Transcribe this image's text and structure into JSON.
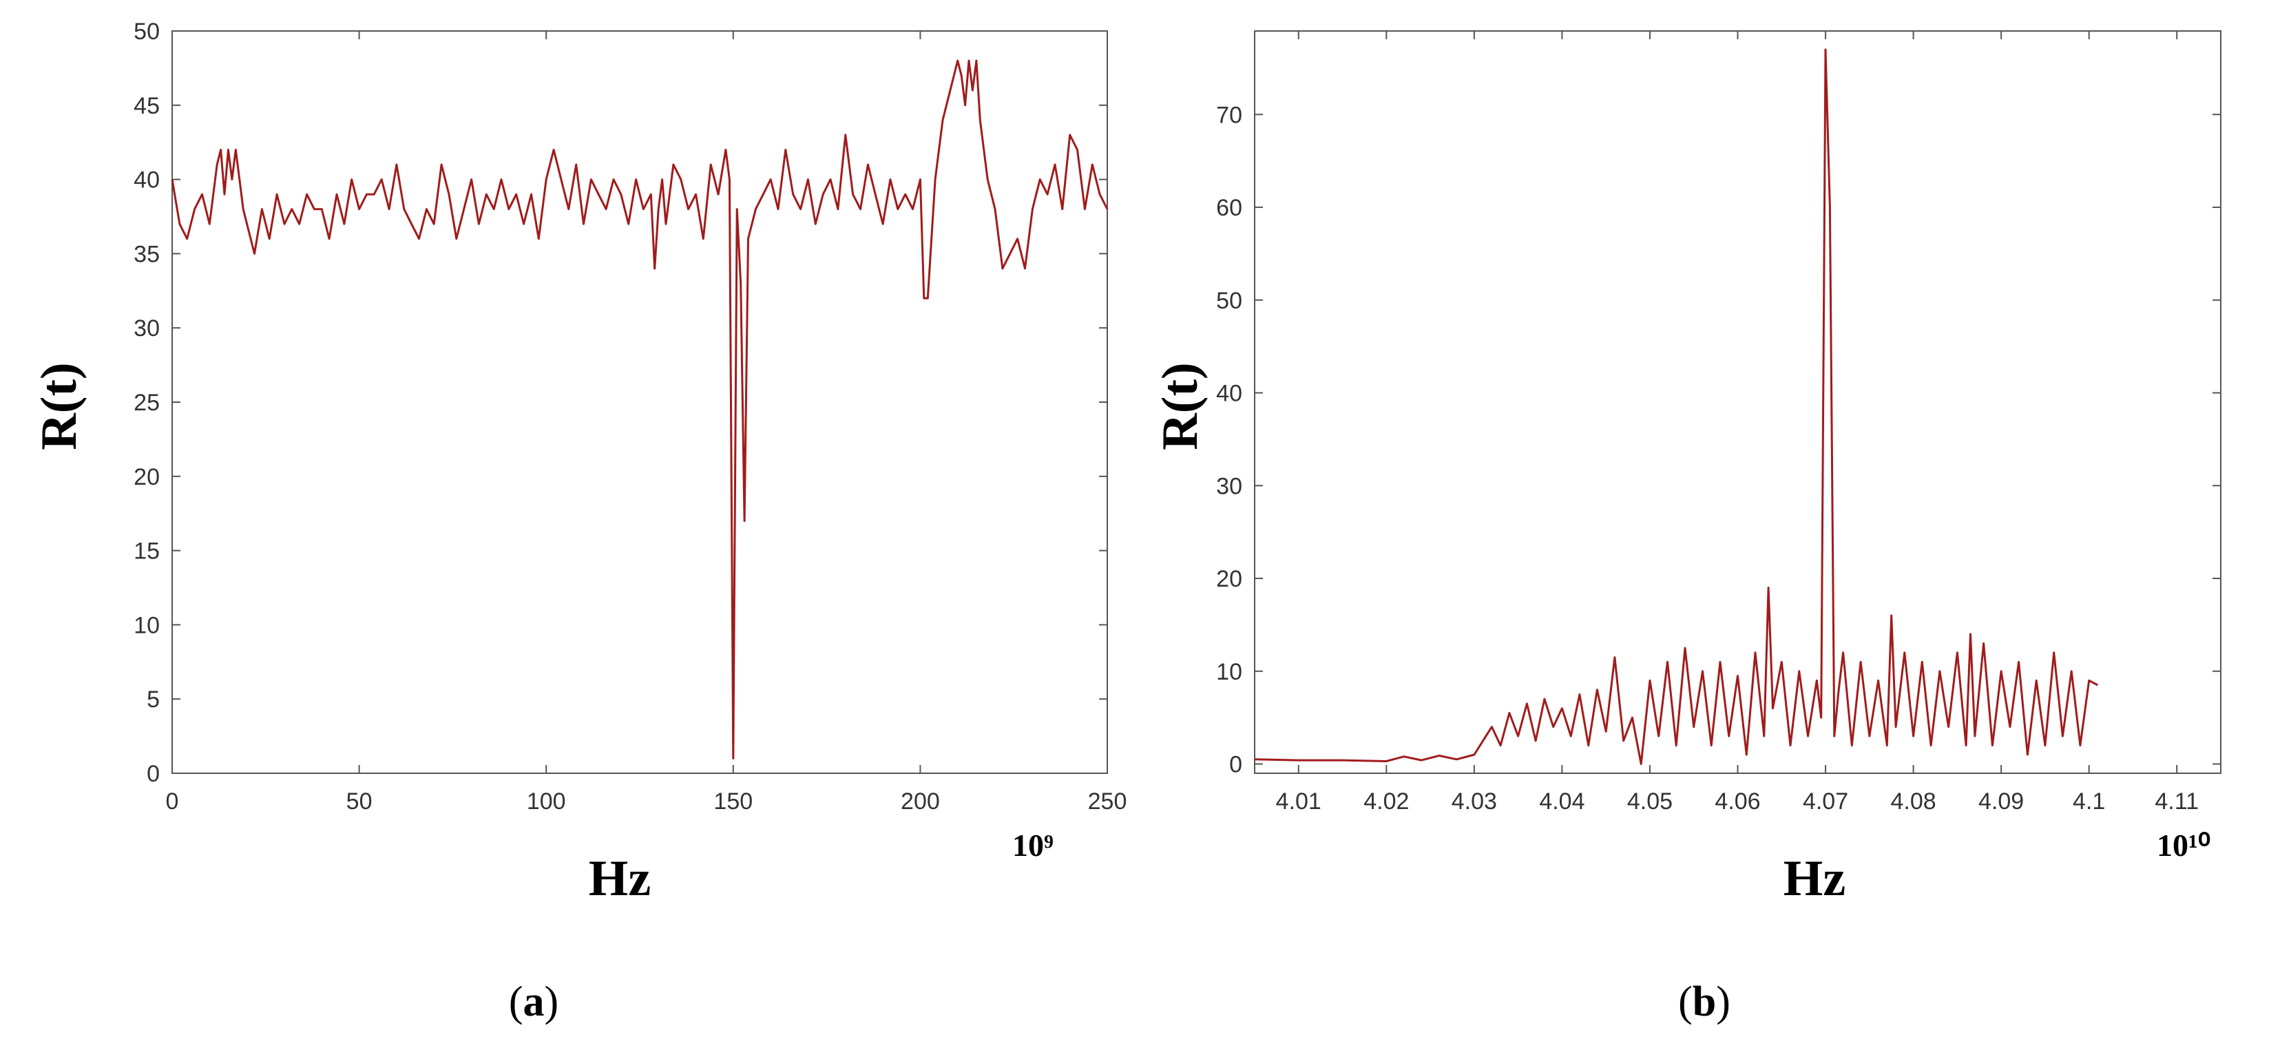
{
  "colors": {
    "line": "#a01c1c",
    "axis": "#555555",
    "text": "#000000"
  },
  "chart_data": [
    {
      "type": "line",
      "panel_label": {
        "open": "(",
        "letter": "a",
        "close": ")"
      },
      "xlabel": "Hz",
      "ylabel": "R(t)",
      "x_multiplier": "10⁹",
      "xlim": [
        0,
        250
      ],
      "ylim": [
        0,
        50
      ],
      "xticks": [
        0,
        50,
        100,
        150,
        200,
        250
      ],
      "yticks": [
        0,
        5,
        10,
        15,
        20,
        25,
        30,
        35,
        40,
        45,
        50
      ],
      "grid": false,
      "series": [
        {
          "x": [
            0,
            2,
            4,
            6,
            8,
            10,
            12,
            13,
            14,
            15,
            16,
            17,
            18,
            19,
            20,
            22,
            24,
            26,
            28,
            30,
            32,
            34,
            36,
            38,
            40,
            42,
            44,
            46,
            48,
            50,
            52,
            54,
            56,
            58,
            60,
            62,
            64,
            66,
            68,
            70,
            72,
            74,
            76,
            78,
            80,
            82,
            84,
            86,
            88,
            90,
            92,
            94,
            96,
            98,
            100,
            102,
            104,
            106,
            108,
            110,
            112,
            114,
            116,
            118,
            120,
            122,
            124,
            126,
            128,
            129,
            130,
            131,
            132,
            134,
            136,
            138,
            140,
            142,
            144,
            146,
            148,
            149,
            150,
            151,
            152,
            153,
            154,
            156,
            158,
            160,
            162,
            164,
            166,
            168,
            170,
            172,
            174,
            176,
            178,
            180,
            182,
            184,
            186,
            188,
            190,
            192,
            194,
            196,
            198,
            200,
            201,
            202,
            203,
            204,
            206,
            208,
            210,
            211,
            212,
            213,
            214,
            215,
            216,
            218,
            220,
            222,
            224,
            226,
            228,
            230,
            232,
            234,
            236,
            238,
            240,
            242,
            244,
            246,
            248,
            250
          ],
          "y": [
            40,
            37,
            36,
            38,
            39,
            37,
            41,
            42,
            39,
            42,
            40,
            42,
            40,
            38,
            37,
            35,
            38,
            36,
            39,
            37,
            38,
            37,
            39,
            38,
            38,
            36,
            39,
            37,
            40,
            38,
            39,
            39,
            40,
            38,
            41,
            38,
            37,
            36,
            38,
            37,
            41,
            39,
            36,
            38,
            40,
            37,
            39,
            38,
            40,
            38,
            39,
            37,
            39,
            36,
            40,
            42,
            40,
            38,
            41,
            37,
            40,
            39,
            38,
            40,
            39,
            37,
            40,
            38,
            39,
            34,
            38,
            40,
            37,
            41,
            40,
            38,
            39,
            36,
            41,
            39,
            42,
            40,
            1,
            38,
            33,
            17,
            36,
            38,
            39,
            40,
            38,
            42,
            39,
            38,
            40,
            37,
            39,
            40,
            38,
            43,
            39,
            38,
            41,
            39,
            37,
            40,
            38,
            39,
            38,
            40,
            32,
            32,
            36,
            40,
            44,
            46,
            48,
            47,
            45,
            48,
            46,
            48,
            44,
            40,
            38,
            34,
            35,
            36,
            34,
            38,
            40,
            39,
            41,
            38,
            43,
            42,
            38,
            41,
            39,
            38
          ]
        }
      ]
    },
    {
      "type": "line",
      "panel_label": {
        "open": "(",
        "letter": "b",
        "close": ")"
      },
      "xlabel": "Hz",
      "ylabel": "R(t)",
      "x_multiplier": "10¹⁰",
      "xlim": [
        4.005,
        4.115
      ],
      "ylim": [
        -1,
        79
      ],
      "xticks": [
        4.01,
        4.02,
        4.03,
        4.04,
        4.05,
        4.06,
        4.07,
        4.08,
        4.09,
        4.1,
        4.11
      ],
      "xtick_labels": [
        "4.01",
        "4.02",
        "4.03",
        "4.04",
        "4.05",
        "4.06",
        "4.07",
        "4.08",
        "4.09",
        "4.1",
        "4.11"
      ],
      "yticks": [
        0,
        10,
        20,
        30,
        40,
        50,
        60,
        70
      ],
      "grid": false,
      "series": [
        {
          "x": [
            4.005,
            4.01,
            4.015,
            4.02,
            4.022,
            4.024,
            4.026,
            4.028,
            4.03,
            4.031,
            4.032,
            4.033,
            4.034,
            4.035,
            4.036,
            4.037,
            4.038,
            4.039,
            4.04,
            4.041,
            4.042,
            4.043,
            4.044,
            4.045,
            4.046,
            4.047,
            4.048,
            4.049,
            4.05,
            4.051,
            4.052,
            4.053,
            4.054,
            4.055,
            4.056,
            4.057,
            4.058,
            4.059,
            4.06,
            4.061,
            4.062,
            4.063,
            4.0635,
            4.064,
            4.065,
            4.066,
            4.067,
            4.068,
            4.069,
            4.0695,
            4.07,
            4.0705,
            4.071,
            4.0715,
            4.072,
            4.073,
            4.074,
            4.075,
            4.076,
            4.077,
            4.0775,
            4.078,
            4.079,
            4.08,
            4.081,
            4.082,
            4.083,
            4.084,
            4.085,
            4.086,
            4.0865,
            4.087,
            4.088,
            4.089,
            4.09,
            4.091,
            4.092,
            4.093,
            4.094,
            4.095,
            4.096,
            4.097,
            4.098,
            4.099,
            4.1,
            4.101
          ],
          "y": [
            0.5,
            0.4,
            0.4,
            0.3,
            0.8,
            0.4,
            0.9,
            0.5,
            1.0,
            2.5,
            4.0,
            2.0,
            5.5,
            3.0,
            6.5,
            2.5,
            7.0,
            4.0,
            6.0,
            3.0,
            7.5,
            2.0,
            8.0,
            3.5,
            11.5,
            2.5,
            5.0,
            0.0,
            9.0,
            3.0,
            11.0,
            2.0,
            12.5,
            4.0,
            10.0,
            2.0,
            11.0,
            3.0,
            9.5,
            1.0,
            12.0,
            3.0,
            19.0,
            6.0,
            11.0,
            2.0,
            10.0,
            3.0,
            9.0,
            5.0,
            77.0,
            60.0,
            3.0,
            8.0,
            12.0,
            2.0,
            11.0,
            3.0,
            9.0,
            2.0,
            16.0,
            4.0,
            12.0,
            3.0,
            11.0,
            2.0,
            10.0,
            4.0,
            12.0,
            2.0,
            14.0,
            3.0,
            13.0,
            2.0,
            10.0,
            4.0,
            11.0,
            1.0,
            9.0,
            2.0,
            12.0,
            3.0,
            10.0,
            2.0,
            9.0,
            8.5
          ]
        }
      ]
    }
  ]
}
